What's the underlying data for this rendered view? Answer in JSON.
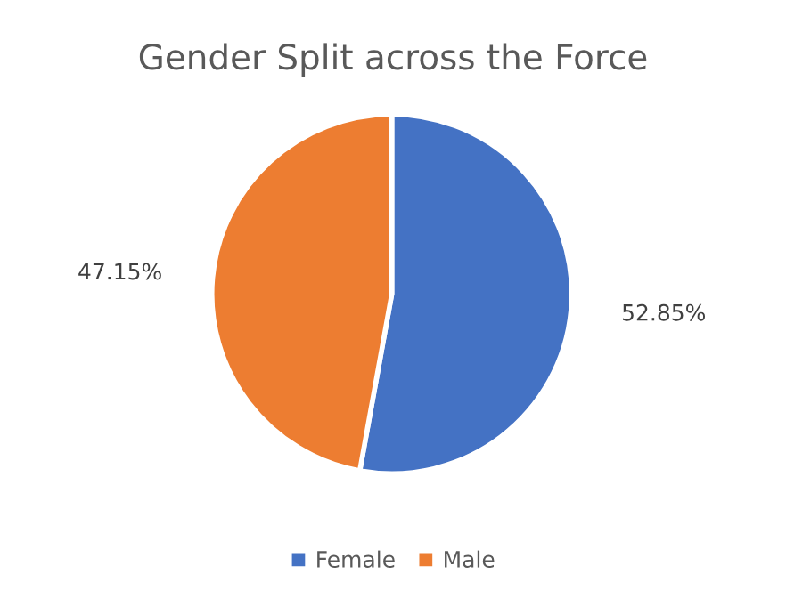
{
  "chart_data": {
    "type": "pie",
    "title": "Gender Split across the Force",
    "categories": [
      "Female",
      "Male"
    ],
    "values": [
      52.85,
      47.15
    ],
    "colors": [
      "#4472c4",
      "#ed7d31"
    ],
    "value_labels": [
      "52.85%",
      "47.15%"
    ],
    "legend": "bottom"
  }
}
